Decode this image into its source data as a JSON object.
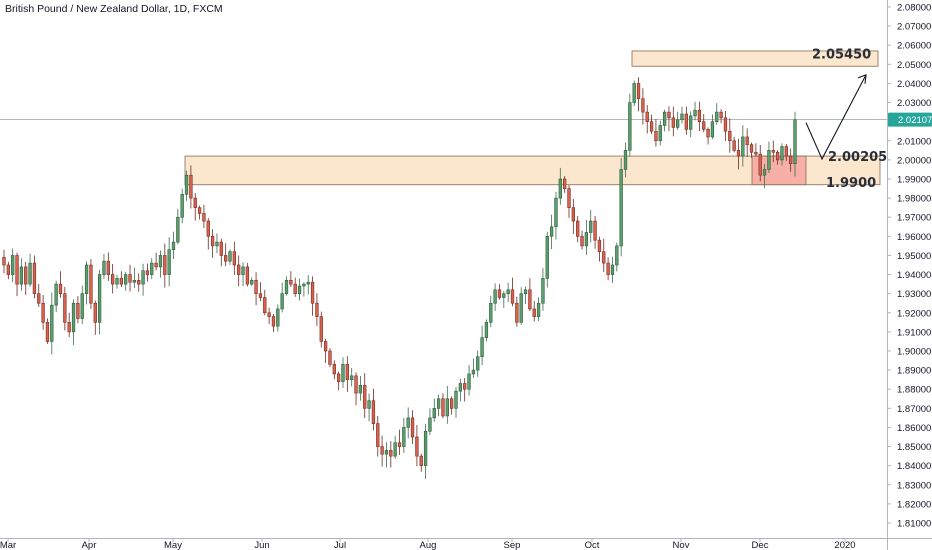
{
  "header": {
    "title": "British Pound / New Zealand Dollar, 1D, FXCM"
  },
  "colors": {
    "up": "#26a69a",
    "up_fill": "#5aa06f",
    "down": "#c0392b",
    "down_fill": "#d9624e",
    "zone_fill": "#fbe3c9",
    "zone_stroke": "#8a6b4e",
    "red_zone_fill": "#f4a6a0",
    "price_badge": "#26a69a"
  },
  "chart_data": {
    "type": "candlestick",
    "title": "British Pound / New Zealand Dollar, 1D, FXCM",
    "ylim": [
      1.805,
      2.085
    ],
    "y_ticks": [
      "2.08000",
      "2.07000",
      "2.06000",
      "2.05000",
      "2.04000",
      "2.03000",
      "2.02000",
      "2.01000",
      "2.00000",
      "1.99000",
      "1.98000",
      "1.97000",
      "1.96000",
      "1.95000",
      "1.94000",
      "1.93000",
      "1.92000",
      "1.91000",
      "1.90000",
      "1.89000",
      "1.88000",
      "1.87000",
      "1.86000",
      "1.85000",
      "1.84000",
      "1.83000",
      "1.82000",
      "1.81000"
    ],
    "x_ticks": [
      "Mar",
      "Apr",
      "May",
      "Jun",
      "Jul",
      "Aug",
      "Sep",
      "Oct",
      "Nov",
      "Dec",
      "2020"
    ],
    "last_price": "2.02107",
    "annotations": [
      {
        "label": "2.05450",
        "value": 2.0545
      },
      {
        "label": "2.00205",
        "value": 2.00205
      },
      {
        "label": "1.9900",
        "value": 1.99
      }
    ],
    "zones": [
      {
        "name": "top-zone",
        "y_from": 2.049,
        "y_to": 2.057
      },
      {
        "name": "support-zone",
        "y_from": 1.987,
        "y_to": 2.002
      },
      {
        "name": "red-zone",
        "y_from": 1.987,
        "y_to": 2.002
      }
    ],
    "closes": [
      1.945,
      1.94,
      1.95,
      1.935,
      1.944,
      1.935,
      1.946,
      1.93,
      1.925,
      1.915,
      1.905,
      1.924,
      1.935,
      1.93,
      1.915,
      1.91,
      1.925,
      1.917,
      1.93,
      1.945,
      1.925,
      1.915,
      1.94,
      1.947,
      1.94,
      1.935,
      1.938,
      1.935,
      1.94,
      1.936,
      1.937,
      1.935,
      1.942,
      1.94,
      1.946,
      1.944,
      1.95,
      1.94,
      1.953,
      1.957,
      1.97,
      1.982,
      1.992,
      1.98,
      1.975,
      1.972,
      1.968,
      1.96,
      1.955,
      1.957,
      1.95,
      1.947,
      1.952,
      1.945,
      1.94,
      1.944,
      1.935,
      1.937,
      1.93,
      1.928,
      1.92,
      1.918,
      1.913,
      1.922,
      1.93,
      1.937,
      1.935,
      1.93,
      1.934,
      1.935,
      1.936,
      1.925,
      1.918,
      1.905,
      1.9,
      1.893,
      1.888,
      1.884,
      1.893,
      1.885,
      1.887,
      1.878,
      1.882,
      1.87,
      1.874,
      1.862,
      1.85,
      1.846,
      1.848,
      1.845,
      1.852,
      1.85,
      1.86,
      1.865,
      1.855,
      1.845,
      1.84,
      1.858,
      1.865,
      1.87,
      1.875,
      1.866,
      1.875,
      1.87,
      1.879,
      1.883,
      1.88,
      1.888,
      1.89,
      1.897,
      1.907,
      1.915,
      1.925,
      1.932,
      1.928,
      1.93,
      1.932,
      1.925,
      1.915,
      1.93,
      1.932,
      1.922,
      1.918,
      1.925,
      1.938,
      1.96,
      1.965,
      1.98,
      1.99,
      1.985,
      1.975,
      1.968,
      1.96,
      1.955,
      1.962,
      1.968,
      1.958,
      1.952,
      1.946,
      1.94,
      1.945,
      1.955,
      1.995,
      2.005,
      2.03,
      2.04,
      2.032,
      2.025,
      2.02,
      2.015,
      2.01,
      2.018,
      2.025,
      2.022,
      2.017,
      2.021,
      2.024,
      2.016,
      2.023,
      2.026,
      2.02,
      2.016,
      2.012,
      2.02,
      2.025,
      2.022,
      2.015,
      2.01,
      2.005,
      2.002,
      2.012,
      2.008,
      2.004,
      2.003,
      1.992,
      1.995,
      2.005,
      2.004,
      2.0,
      2.007,
      2.002,
      1.998,
      2.021
    ]
  }
}
